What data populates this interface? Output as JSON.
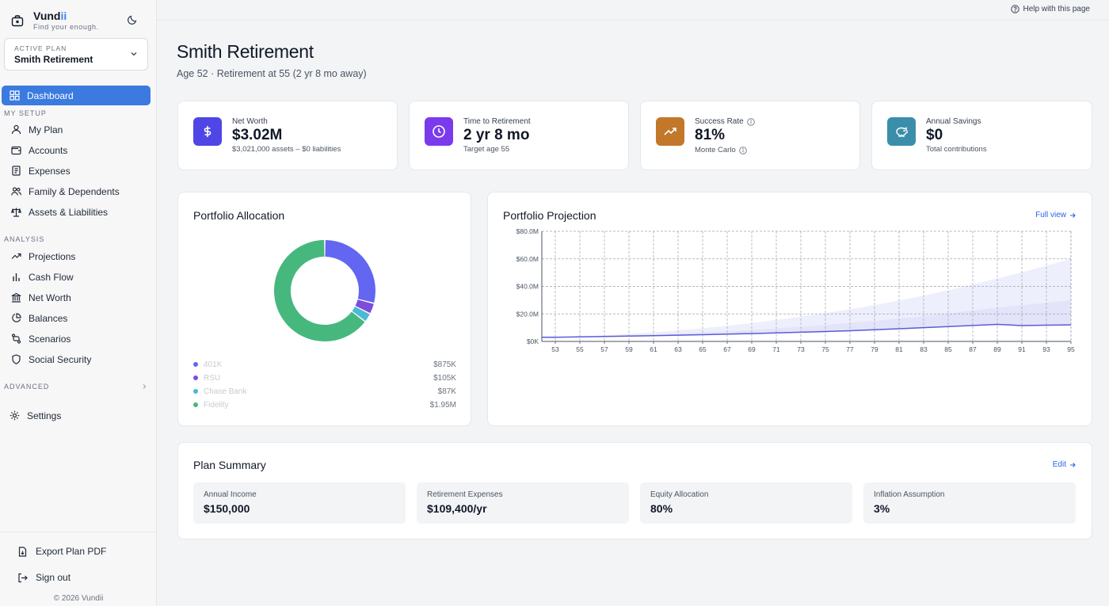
{
  "app": {
    "brand_main": "Vund",
    "brand_accent": "ii",
    "tagline": "Find your enough.",
    "copyright": "© 2026 Vundii"
  },
  "plan_selector": {
    "label": "ACTIVE PLAN",
    "value": "Smith Retirement"
  },
  "sidebar": {
    "dashboard": "Dashboard",
    "setup_section": "MY SETUP",
    "setup_items": [
      "My Plan",
      "Accounts",
      "Expenses",
      "Family & Dependents",
      "Assets & Liabilities"
    ],
    "analysis_section": "ANALYSIS",
    "analysis_items": [
      "Projections",
      "Cash Flow",
      "Net Worth",
      "Balances",
      "Scenarios",
      "Social Security"
    ],
    "advanced_section": "ADVANCED",
    "settings": "Settings",
    "export": "Export Plan PDF",
    "signout": "Sign out"
  },
  "topbar": {
    "help": "Help with this page"
  },
  "header": {
    "title": "Smith Retirement",
    "subtitle": "Age 52 · Retirement at 55 (2 yr 8 mo away)"
  },
  "stats": [
    {
      "label": "Net Worth",
      "value": "$3.02M",
      "sub": "$3,021,000 assets – $0 liabilities",
      "color": "#4f46e5",
      "icon": "dollar-icon"
    },
    {
      "label": "Time to Retirement",
      "value": "2 yr 8 mo",
      "sub": "Target age 55",
      "color": "#7c3aed",
      "icon": "clock-icon"
    },
    {
      "label": "Success Rate",
      "value": "81%",
      "sub": "Monte Carlo",
      "color": "#c2772a",
      "icon": "trending-up-icon"
    },
    {
      "label": "Annual Savings",
      "value": "$0",
      "sub": "Total contributions",
      "color": "#3b8eaa",
      "icon": "piggy-bank-icon"
    }
  ],
  "allocation": {
    "title": "Portfolio Allocation",
    "items": [
      {
        "name": "401K",
        "value": "$875K",
        "amount": 875,
        "color": "#6366f1"
      },
      {
        "name": "RSU",
        "value": "$105K",
        "amount": 105,
        "color": "#7c4ddc"
      },
      {
        "name": "Chase Bank",
        "value": "$87K",
        "amount": 87,
        "color": "#4bb8d6"
      },
      {
        "name": "Fidelity",
        "value": "$1.95M",
        "amount": 1950,
        "color": "#46b87e"
      }
    ]
  },
  "projection": {
    "title": "Portfolio Projection",
    "link": "Full view",
    "y_labels": [
      "$80.0M",
      "$60.0M",
      "$40.0M",
      "$20.0M",
      "$0K"
    ],
    "x_labels": [
      "53",
      "55",
      "57",
      "59",
      "61",
      "63",
      "65",
      "67",
      "69",
      "71",
      "73",
      "75",
      "77",
      "79",
      "81",
      "83",
      "85",
      "87",
      "89",
      "91",
      "93",
      "95"
    ]
  },
  "chart_data": {
    "type": "area",
    "title": "Portfolio Projection",
    "xlabel": "",
    "ylabel": "",
    "x": [
      53,
      55,
      57,
      59,
      61,
      63,
      65,
      67,
      69,
      71,
      73,
      75,
      77,
      79,
      81,
      83,
      85,
      87,
      89,
      91,
      93,
      95
    ],
    "ylim": [
      0,
      80
    ],
    "y_unit": "$M",
    "grid": true,
    "series": [
      {
        "values": [
          3.0,
          3.3,
          3.6,
          3.9,
          4.2,
          4.5,
          4.9,
          5.3,
          5.7,
          6.2,
          6.7,
          7.2,
          7.8,
          8.5,
          9.2,
          10.0,
          10.8,
          11.6,
          12.4,
          11.5,
          11.8,
          12.0
        ]
      },
      {
        "values": [
          3.0,
          3.4,
          3.9,
          4.4,
          5.0,
          5.7,
          6.5,
          7.4,
          8.4,
          9.5,
          10.7,
          12.0,
          13.5,
          15.0,
          16.7,
          18.5,
          20.5,
          22.5,
          24.6,
          26.4,
          28.2,
          30.0
        ]
      },
      {
        "values": [
          3.0,
          3.6,
          4.4,
          5.4,
          6.6,
          8.0,
          9.6,
          11.4,
          13.4,
          15.6,
          18.0,
          20.6,
          23.4,
          26.4,
          29.7,
          33.3,
          37.2,
          41.4,
          45.8,
          50.3,
          55.0,
          60.0
        ]
      }
    ]
  },
  "summary": {
    "title": "Plan Summary",
    "edit": "Edit",
    "items": [
      {
        "label": "Annual Income",
        "value": "$150,000"
      },
      {
        "label": "Retirement Expenses",
        "value": "$109,400/yr"
      },
      {
        "label": "Equity Allocation",
        "value": "80%"
      },
      {
        "label": "Inflation Assumption",
        "value": "3%"
      }
    ]
  }
}
